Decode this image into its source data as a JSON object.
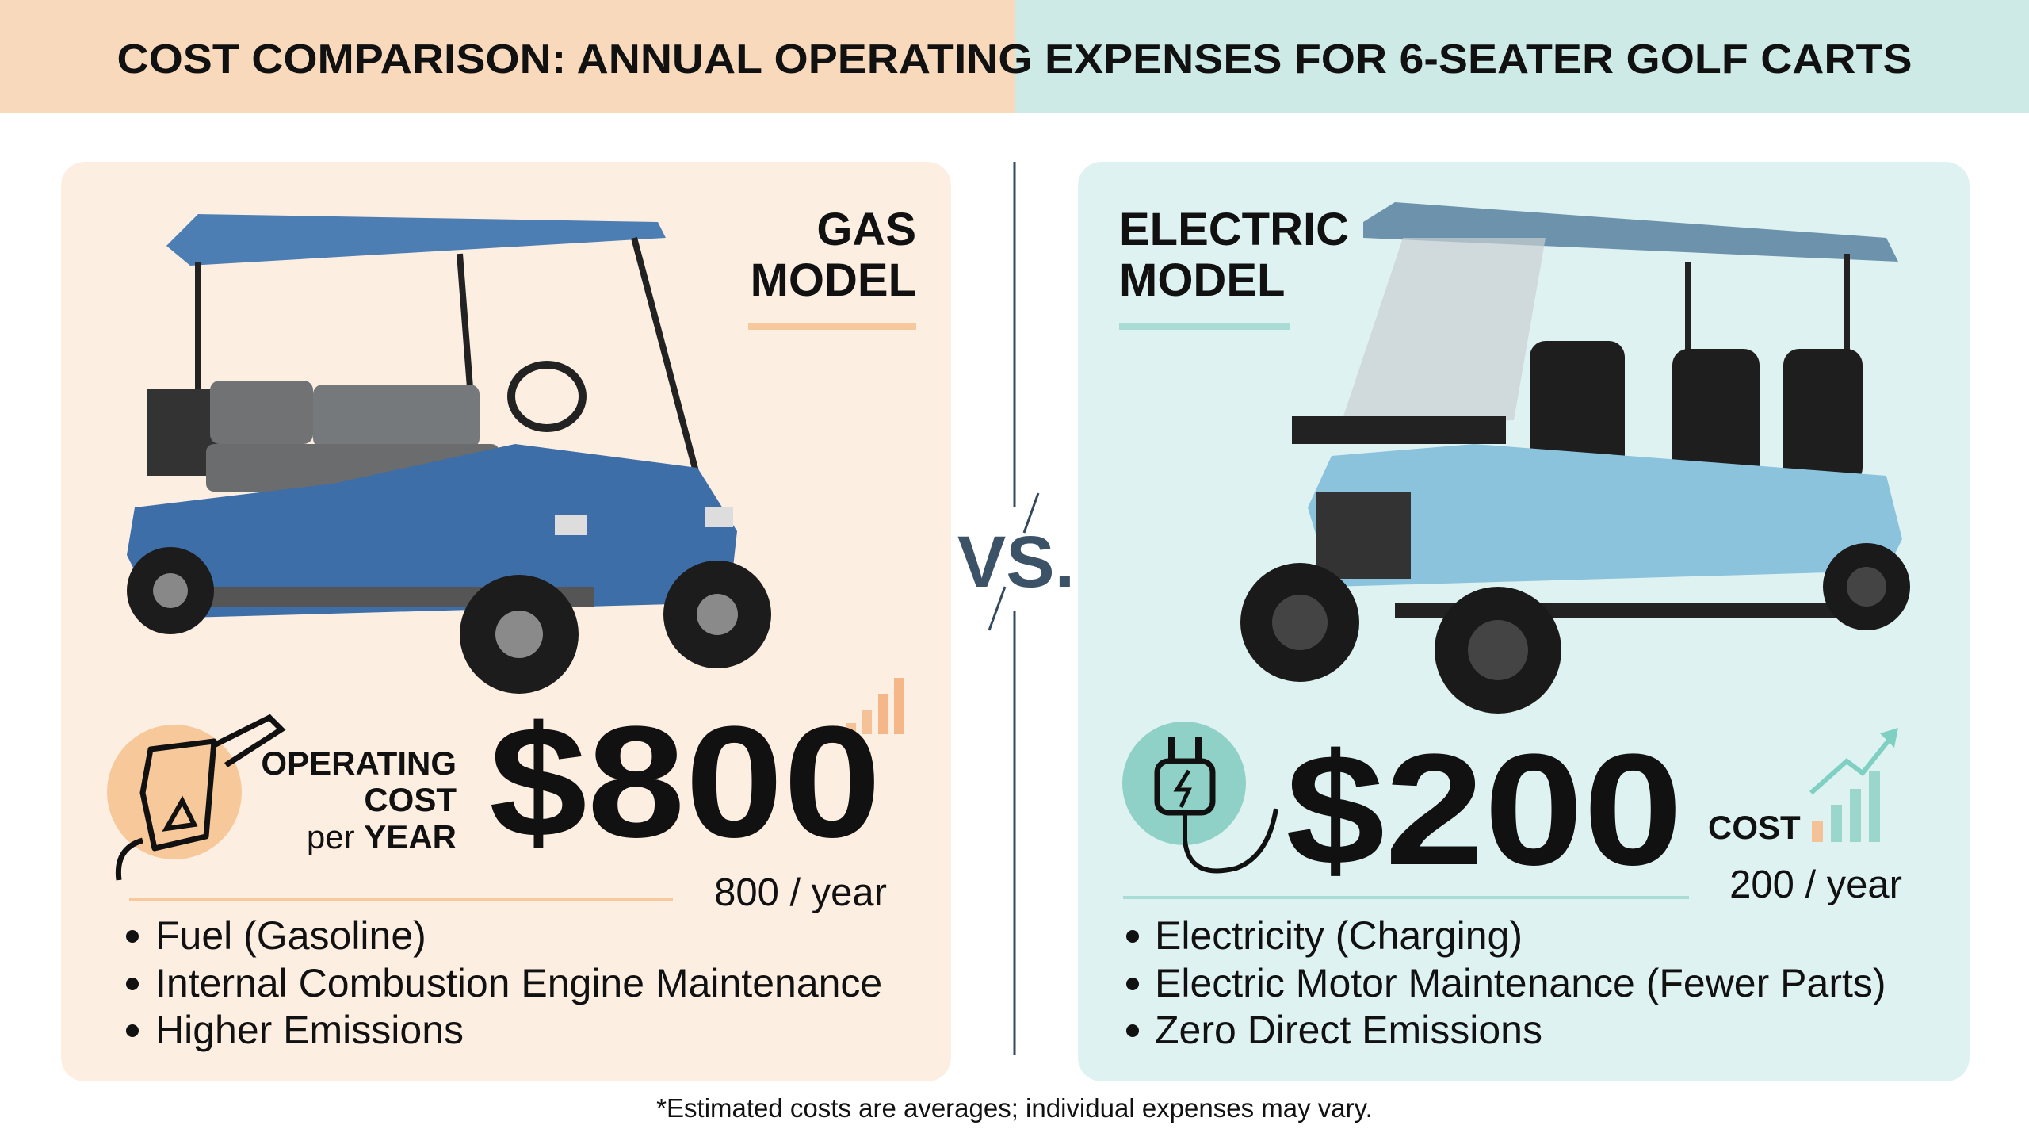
{
  "header": {
    "title": "COST COMPARISON: ANNUAL OPERATING EXPENSES FOR 6-SEATER GOLF CARTS"
  },
  "vs": "VS.",
  "gas": {
    "title_lines": [
      "GAS",
      "MODEL"
    ],
    "cost_label_lines": [
      "OPERATING",
      "COST"
    ],
    "per": "per",
    "year_word": "YEAR",
    "amount": "$800",
    "per_year": "800 / year",
    "bullets": [
      "Fuel (Gasoline)",
      "Internal Combustion Engine Maintenance",
      "Higher Emissions"
    ]
  },
  "electric": {
    "title_lines": [
      "ELECTRIC",
      "MODEL"
    ],
    "cost_label": "COST",
    "amount": "$200",
    "per_year": "200 / year",
    "bullets": [
      "Electricity (Charging)",
      "Electric Motor Maintenance (Fewer Parts)",
      "Zero Direct Emissions"
    ]
  },
  "footnote": "*Estimated costs are averages; individual expenses may vary."
}
